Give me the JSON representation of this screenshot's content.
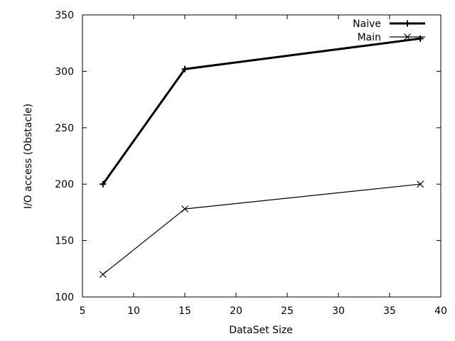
{
  "chart_data": {
    "type": "line",
    "title": "",
    "xlabel": "DataSet Size",
    "ylabel": "I/O access (Obstacle)",
    "xlim": [
      5,
      40
    ],
    "ylim": [
      100,
      350
    ],
    "xticks": [
      5,
      10,
      15,
      20,
      25,
      30,
      35,
      40
    ],
    "yticks": [
      100,
      150,
      200,
      250,
      300,
      350
    ],
    "grid": false,
    "legend_position": "top-right",
    "x": [
      7,
      15,
      38
    ],
    "series": [
      {
        "name": "Naive",
        "values": [
          200,
          302,
          329
        ],
        "marker": "plus",
        "color": "#000000",
        "line_weight": "bold"
      },
      {
        "name": "Main",
        "values": [
          120,
          178,
          200
        ],
        "marker": "cross",
        "color": "#000000",
        "line_weight": "thin"
      }
    ]
  }
}
